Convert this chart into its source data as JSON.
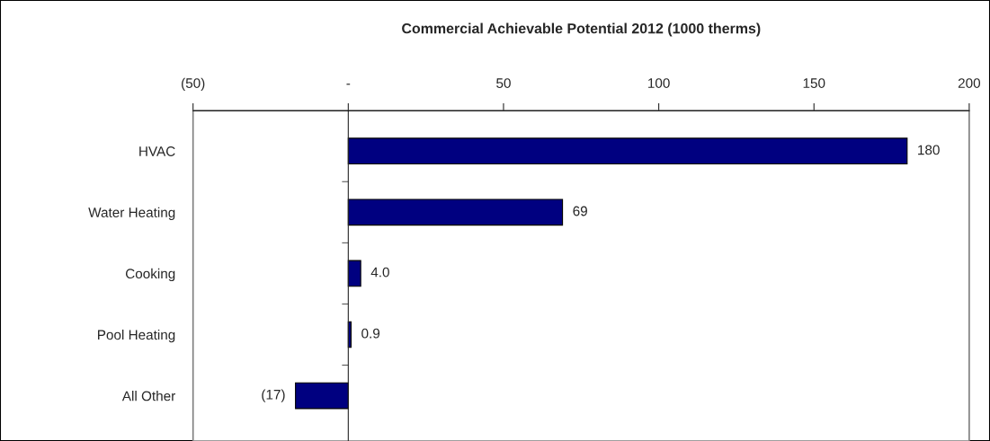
{
  "chart_data": {
    "type": "bar",
    "orientation": "horizontal",
    "title": "Commercial Achievable Potential 2012 (1000 therms)",
    "categories": [
      "HVAC",
      "Water Heating",
      "Cooking",
      "Pool Heating",
      "All Other"
    ],
    "values": [
      180,
      69,
      4.0,
      0.9,
      -17
    ],
    "value_labels": [
      "180",
      "69",
      "4.0",
      "0.9",
      "(17)"
    ],
    "color": "#000080",
    "xlim": [
      -50,
      200
    ],
    "xticks": [
      {
        "value": -50,
        "label": "(50)"
      },
      {
        "value": 0,
        "label": "-"
      },
      50,
      100,
      150,
      200
    ],
    "legend": false
  }
}
